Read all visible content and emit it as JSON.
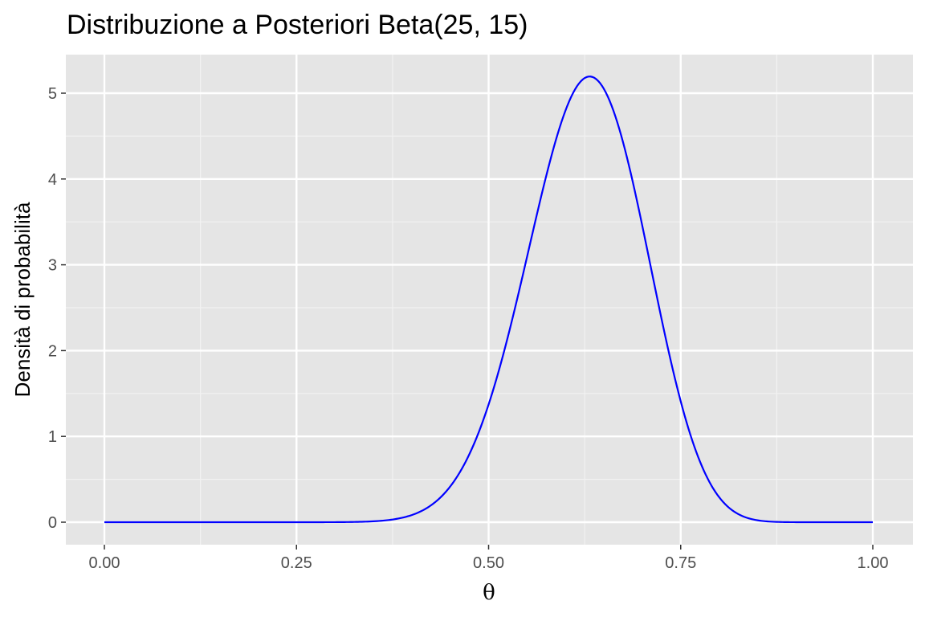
{
  "chart_data": {
    "type": "line",
    "title": "Distribuzione a Posteriori Beta(25, 15)",
    "xlabel": "θ",
    "ylabel": "Densità di probabilità",
    "distribution": {
      "family": "beta",
      "alpha": 25,
      "beta": 15
    },
    "xlim": [
      0,
      1
    ],
    "ylim": [
      0,
      5.2
    ],
    "x_ticks": [
      0,
      0.25,
      0.5,
      0.75,
      1
    ],
    "x_tick_labels": [
      "0.00",
      "0.25",
      "0.50",
      "0.75",
      "1.00"
    ],
    "y_ticks": [
      0,
      1,
      2,
      3,
      4,
      5
    ],
    "y_tick_labels": [
      "0",
      "1",
      "2",
      "3",
      "4",
      "5"
    ],
    "grid": true,
    "series": [
      {
        "color": "#0000ff",
        "x": [
          0,
          0.05,
          0.1,
          0.15,
          0.2,
          0.25,
          0.3,
          0.35,
          0.4,
          0.42,
          0.44,
          0.46,
          0.48,
          0.5,
          0.52,
          0.54,
          0.56,
          0.58,
          0.6,
          0.615,
          0.632,
          0.65,
          0.67,
          0.69,
          0.71,
          0.73,
          0.75,
          0.77,
          0.79,
          0.81,
          0.83,
          0.85,
          0.87,
          0.9,
          0.95,
          1
        ],
        "y": [
          0,
          0,
          0,
          0,
          0,
          0,
          0.001,
          0.013,
          0.087,
          0.166,
          0.297,
          0.5,
          0.793,
          1.187,
          1.682,
          2.262,
          2.897,
          3.537,
          4.124,
          4.51,
          4.719,
          4.98,
          4.74,
          4.2,
          3.44,
          2.58,
          1.76,
          1.08,
          0.6,
          0.29,
          0.12,
          0.04,
          0.012,
          0.002,
          0,
          0
        ]
      }
    ]
  }
}
